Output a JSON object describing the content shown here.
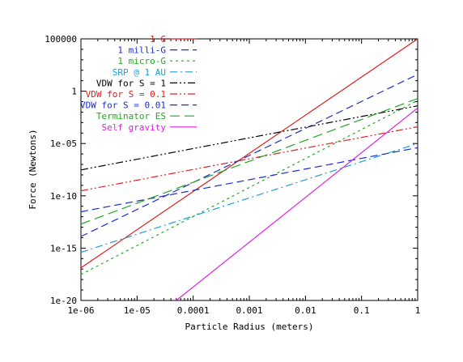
{
  "chart_data": {
    "type": "line",
    "title": "",
    "xlabel": "Particle Radius (meters)",
    "ylabel": "Force (Newtons)",
    "xscale": "log",
    "yscale": "log",
    "xlim": [
      1e-06,
      1
    ],
    "ylim": [
      1e-20,
      100000
    ],
    "x_ticks": [
      1e-06,
      1e-05,
      0.0001,
      0.001,
      0.01,
      0.1,
      1
    ],
    "x_tick_labels": [
      "1e-06",
      "1e-05",
      "0.0001",
      "0.001",
      "0.01",
      "0.1",
      "1"
    ],
    "y_ticks": [
      1e-20,
      1e-15,
      1e-10,
      1e-05,
      1,
      100000
    ],
    "y_tick_labels": [
      "1e-20",
      "1e-15",
      "1e-10",
      "1e-05",
      "1",
      "100000"
    ],
    "grid": false,
    "legend_position": "top-left",
    "series": [
      {
        "name": "1 G",
        "color": "#e02020",
        "dash": "solid",
        "x": [
          1e-06,
          1
        ],
        "y": [
          1.3e-17,
          100000
        ]
      },
      {
        "name": "1 milli-G",
        "color": "#1a2ecc",
        "dash": "dashed",
        "x": [
          1e-06,
          1
        ],
        "y": [
          1.3e-14,
          40
        ]
      },
      {
        "name": "1 micro-G",
        "color": "#22a822",
        "dash": "dotted",
        "x": [
          1e-06,
          1
        ],
        "y": [
          3e-18,
          0.13
        ]
      },
      {
        "name": "SRP @ 1 AU",
        "color": "#1a9fd8",
        "dash": "dashdot",
        "x": [
          1e-06,
          1
        ],
        "y": [
          4e-16,
          1e-05
        ]
      },
      {
        "name": "VDW for S = 1",
        "color": "#000000",
        "dash": "dashdotdot",
        "x": [
          1e-06,
          1
        ],
        "y": [
          3e-08,
          0.04
        ]
      },
      {
        "name": "VDW for S = 0.1",
        "color": "#e02020",
        "dash": "dashdotdot",
        "x": [
          1e-06,
          1
        ],
        "y": [
          3e-10,
          0.0004
        ]
      },
      {
        "name": "VDW for S = 0.01",
        "color": "#1a2ecc",
        "dash": "dashed",
        "x": [
          1e-06,
          1
        ],
        "y": [
          3e-12,
          4e-06
        ]
      },
      {
        "name": "Terminator ES",
        "color": "#22a822",
        "dash": "longdash",
        "x": [
          1e-06,
          1
        ],
        "y": [
          2e-13,
          0.2
        ]
      },
      {
        "name": "Self gravity",
        "color": "#e020e0",
        "dash": "solid",
        "x": [
          5e-05,
          1
        ],
        "y": [
          1e-20,
          0.025
        ]
      }
    ]
  }
}
